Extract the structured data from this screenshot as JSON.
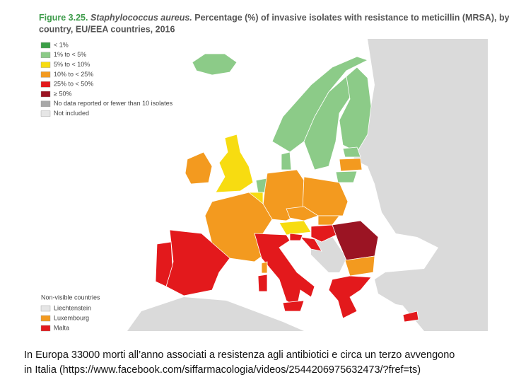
{
  "header": {
    "figure": "Figure 3.25.",
    "species": "Staphylococcus aureus.",
    "title_rest_line1": "Percentage (%) of invasive isolates with resistance to meticillin (MRSA), by",
    "title_line2": "country, EU/EEA countries, 2016"
  },
  "legend": {
    "items": [
      {
        "label": "< 1%",
        "color": "#3a9e46"
      },
      {
        "label": "1% to < 5%",
        "color": "#8ccb88"
      },
      {
        "label": "5% to < 10%",
        "color": "#f7dc11"
      },
      {
        "label": "10% to < 25%",
        "color": "#f39a1f"
      },
      {
        "label": "25% to < 50%",
        "color": "#e3191c"
      },
      {
        "label": "≥ 50%",
        "color": "#9b1423"
      },
      {
        "label": "No data reported or fewer than 10 isolates",
        "color": "#a8a8a8"
      },
      {
        "label": "Not included",
        "color": "#e6e6e6"
      }
    ]
  },
  "non_visible": {
    "title": "Non-visible countries",
    "items": [
      {
        "label": "Liechtenstein",
        "color": "#e6e6e6"
      },
      {
        "label": "Luxembourg",
        "color": "#f39a1f"
      },
      {
        "label": "Malta",
        "color": "#e3191c"
      }
    ]
  },
  "caption": {
    "line1": "In Europa 33000 morti all’anno associati a resistenza agli antibiotici e circa un terzo avvengono",
    "line2": "in Italia (https://www.facebook.com/siffarmacologia/videos/2544206975632473/?fref=ts)"
  }
}
